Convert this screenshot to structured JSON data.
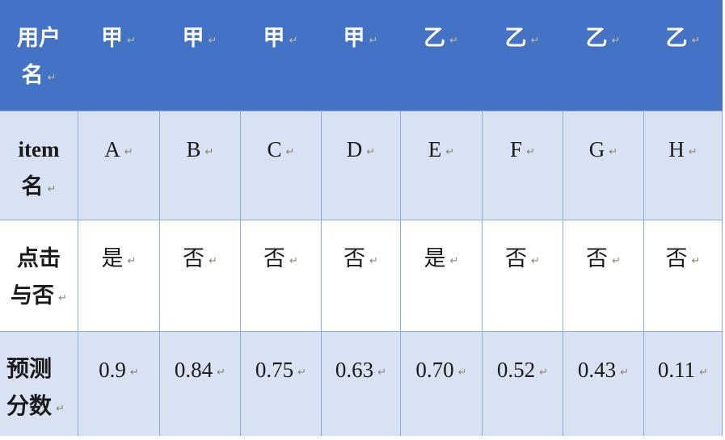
{
  "ui": {
    "pilcrow": "↵"
  },
  "table": {
    "header": {
      "line1": "用户",
      "line2": "名",
      "cells": [
        "甲",
        "甲",
        "甲",
        "甲",
        "乙",
        "乙",
        "乙",
        "乙"
      ]
    },
    "rows": [
      {
        "line1": "item",
        "line2": "名",
        "cells": [
          "A",
          "B",
          "C",
          "D",
          "E",
          "F",
          "G",
          "H"
        ]
      },
      {
        "line1": "点击",
        "line2": "与否",
        "cells": [
          "是",
          "否",
          "否",
          "否",
          "是",
          "否",
          "否",
          "否"
        ]
      },
      {
        "line1": "预测",
        "line2": "分数",
        "cells": [
          "0.9",
          "0.84",
          "0.75",
          "0.63",
          "0.70",
          "0.52",
          "0.43",
          "0.11"
        ]
      }
    ],
    "colors": {
      "header_bg": "#4472C4",
      "band_bg": "#D9E2F3",
      "border": "#8EAADB",
      "header_text": "#FFFFFF",
      "body_text": "#1A1A1A"
    }
  }
}
